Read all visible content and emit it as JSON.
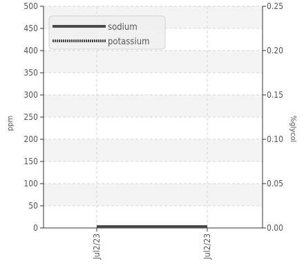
{
  "chart_data": {
    "type": "line",
    "title": "",
    "xlabel": "",
    "ylabel": "ppm",
    "ylabel_right": "%glycol",
    "x_ticks": [
      "Jul2/23",
      "Jul2/23"
    ],
    "ylim": [
      0,
      500
    ],
    "y_ticks": [
      "0",
      "50",
      "100",
      "150",
      "200",
      "250",
      "300",
      "350",
      "400",
      "450",
      "500"
    ],
    "y2lim": [
      0,
      0.25
    ],
    "y2_ticks": [
      "0.00",
      "0.05",
      "0.10",
      "0.15",
      "0.20",
      "0.25"
    ],
    "grid": true,
    "legend_position": "top-left",
    "series": [
      {
        "name": "sodium",
        "style": "solid",
        "color": "#4a4a4a",
        "x": [
          0,
          1
        ],
        "values": [
          0,
          0
        ]
      },
      {
        "name": "potassium",
        "style": "dotted",
        "color": "#4a4a4a",
        "x": [
          0,
          1
        ],
        "values": [
          0,
          0
        ]
      }
    ]
  }
}
